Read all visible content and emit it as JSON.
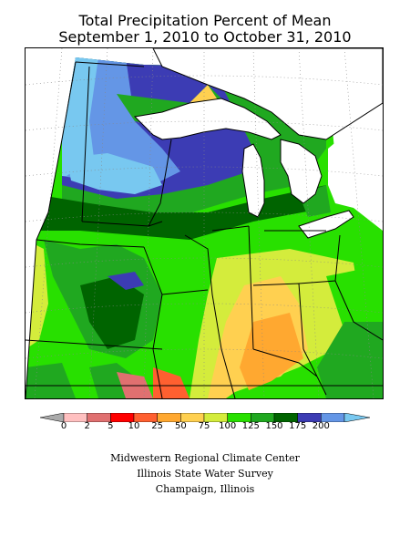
{
  "map": {
    "title_line1": "Total Precipitation Percent of Mean",
    "title_line2": "September 1, 2010 to October 31, 2010",
    "legend": {
      "colors": [
        "#aaaaaa",
        "#ffc0c0",
        "#e07070",
        "#ff0000",
        "#ff6030",
        "#ffa830",
        "#ffd050",
        "#d4ec3c",
        "#28e000",
        "#20a820",
        "#006400",
        "#3c3cb4",
        "#6496e6",
        "#78c8f0"
      ],
      "labels": [
        "0",
        "2",
        "5",
        "10",
        "25",
        "50",
        "75",
        "100",
        "125",
        "150",
        "175",
        "200"
      ]
    },
    "credits": [
      "Midwestern Regional Climate Center",
      "Illinois State Water Survey",
      "Champaign, Illinois"
    ]
  }
}
